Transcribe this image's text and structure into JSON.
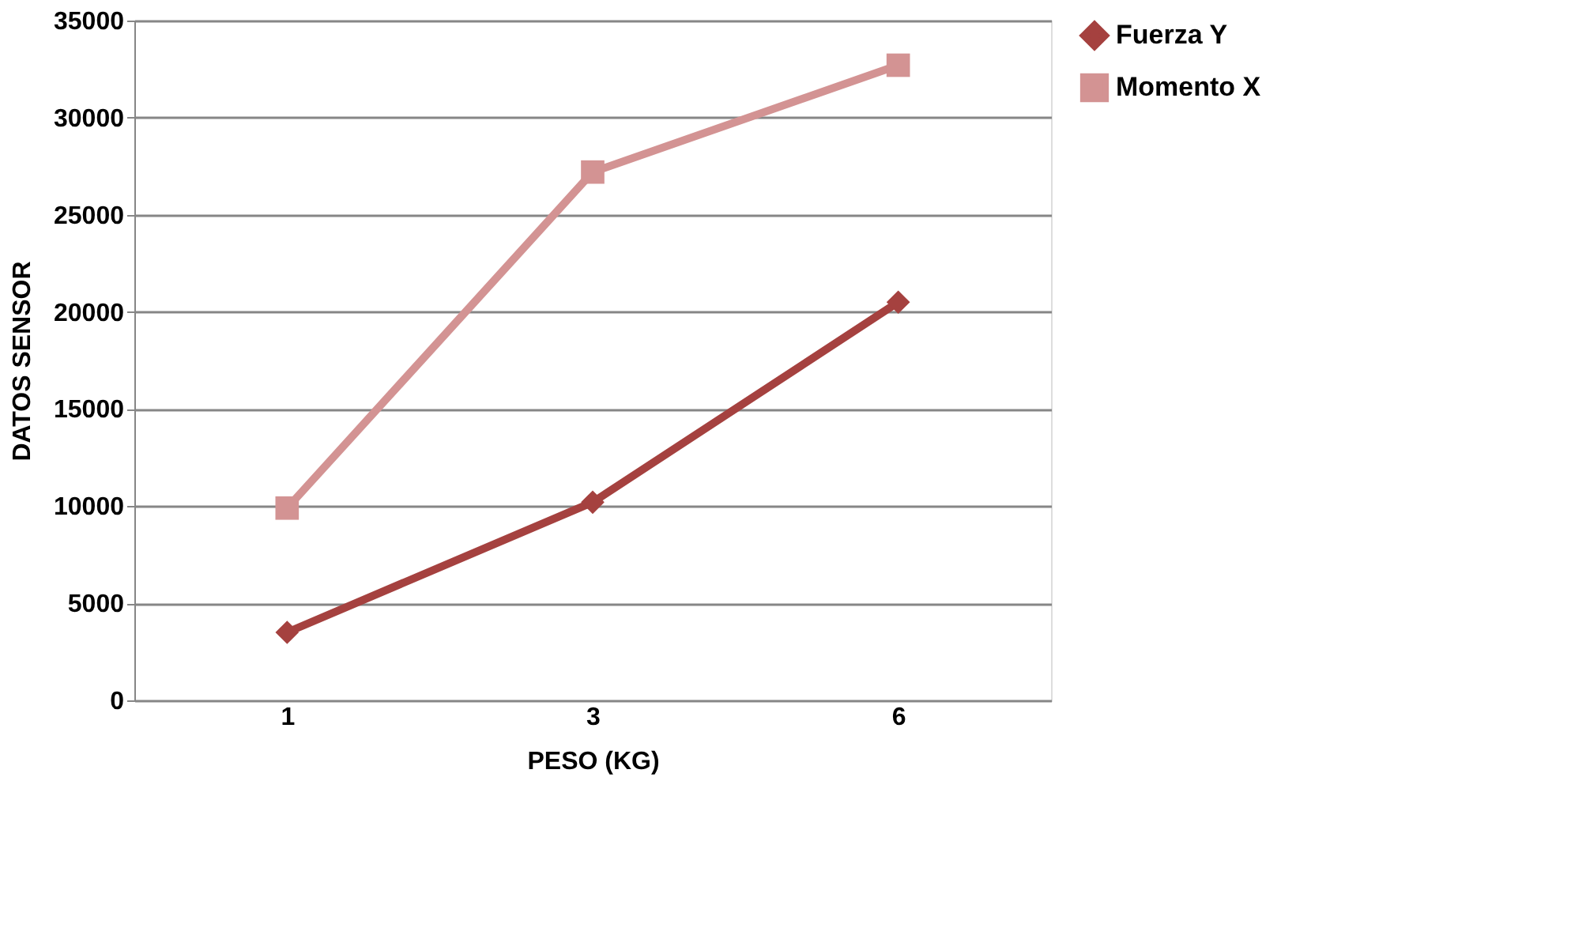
{
  "chart_data": {
    "type": "line",
    "xlabel": "PESO (KG)",
    "ylabel": "DATOS SENSOR",
    "categories": [
      "1",
      "3",
      "6"
    ],
    "series": [
      {
        "name": "Fuerza Y",
        "color": "#a5413f",
        "marker": "diamond",
        "values": [
          3500,
          10200,
          20500
        ]
      },
      {
        "name": "Momento X",
        "color": "#d39393",
        "marker": "square",
        "values": [
          9900,
          27200,
          32700
        ]
      }
    ],
    "ylim": [
      0,
      35000
    ],
    "yticks": [
      0,
      5000,
      10000,
      15000,
      20000,
      25000,
      30000,
      35000
    ],
    "grid": "y",
    "legend": "right",
    "line_style": "solid"
  }
}
